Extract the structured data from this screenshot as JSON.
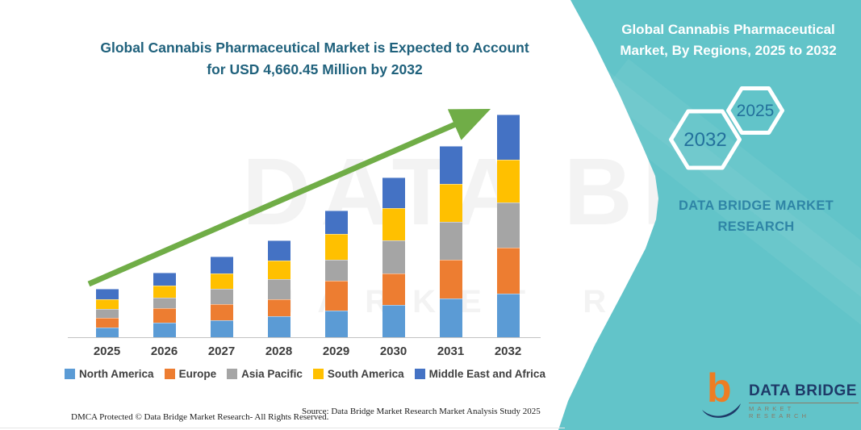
{
  "title": {
    "line1": "Global Cannabis Pharmaceutical Market is Expected to Account",
    "line2": "for USD 4,660.45 Million by 2032"
  },
  "right_panel": {
    "heading_line1": "Global Cannabis Pharmaceutical",
    "heading_line2": "Market, By Regions, 2025 to 2032",
    "hexagon_back_label": "2032",
    "hexagon_front_label": "2025",
    "brand_line1": "DATA BRIDGE MARKET",
    "brand_line2": "RESEARCH"
  },
  "watermark": {
    "line1": "DATA BRIDGE",
    "line2": "MARKET RESEARCH"
  },
  "logo": {
    "mark": "b",
    "name": "DATA BRIDGE",
    "subtitle": "MARKET RESEARCH"
  },
  "footer": {
    "dmca": "DMCA Protected © Data Bridge Market Research-  All Rights Reserved.",
    "source": "Source: Data Bridge Market Research  Market Analysis Study 2025"
  },
  "colors": {
    "teal_background": "#62C4C9",
    "title_text": "#1F617C",
    "hexagon_outline": "#FFFFFF",
    "hexagon_label": "#23719C",
    "brand_text": "#2F85A6",
    "trend_arrow": "#70AD47",
    "logo_orange": "#EE7D23",
    "logo_navy": "#1E3A68",
    "axis_line": "#C3C3C3",
    "year_label": "#3D3D3D"
  },
  "chart_data": {
    "type": "bar",
    "stacked": true,
    "title": "Global Cannabis Pharmaceutical Market, By Regions, 2025 to 2032",
    "unit": "USD Million",
    "categories": [
      "2025",
      "2026",
      "2027",
      "2028",
      "2029",
      "2030",
      "2031",
      "2032"
    ],
    "series": [
      {
        "name": "North America",
        "color": "#5B9BD5",
        "values": [
          203,
          304,
          355,
          439,
          557,
          675,
          810,
          912
        ]
      },
      {
        "name": "Europe",
        "color": "#ED7D31",
        "values": [
          203,
          304,
          338,
          355,
          625,
          659,
          810,
          962
        ]
      },
      {
        "name": "Asia Pacific",
        "color": "#A5A5A5",
        "values": [
          186,
          220,
          321,
          422,
          439,
          692,
          794,
          946
        ]
      },
      {
        "name": "South America",
        "color": "#FFC000",
        "values": [
          203,
          253,
          321,
          388,
          540,
          675,
          794,
          895
        ]
      },
      {
        "name": "Middle East and Africa",
        "color": "#4472C4",
        "values": [
          219,
          270,
          355,
          422,
          490,
          642,
          794,
          945.45
        ]
      }
    ],
    "totals_estimated": [
      1014,
      1351,
      1690,
      2026,
      2651,
      3343,
      4002,
      4660.45
    ],
    "callout_total_2032": "USD 4,660.45 Million",
    "legend_position": "bottom",
    "annotation": "upward trend arrow",
    "ylim": [
      0,
      4800
    ],
    "gridlines": false,
    "axis_labels_visible": "x only"
  }
}
